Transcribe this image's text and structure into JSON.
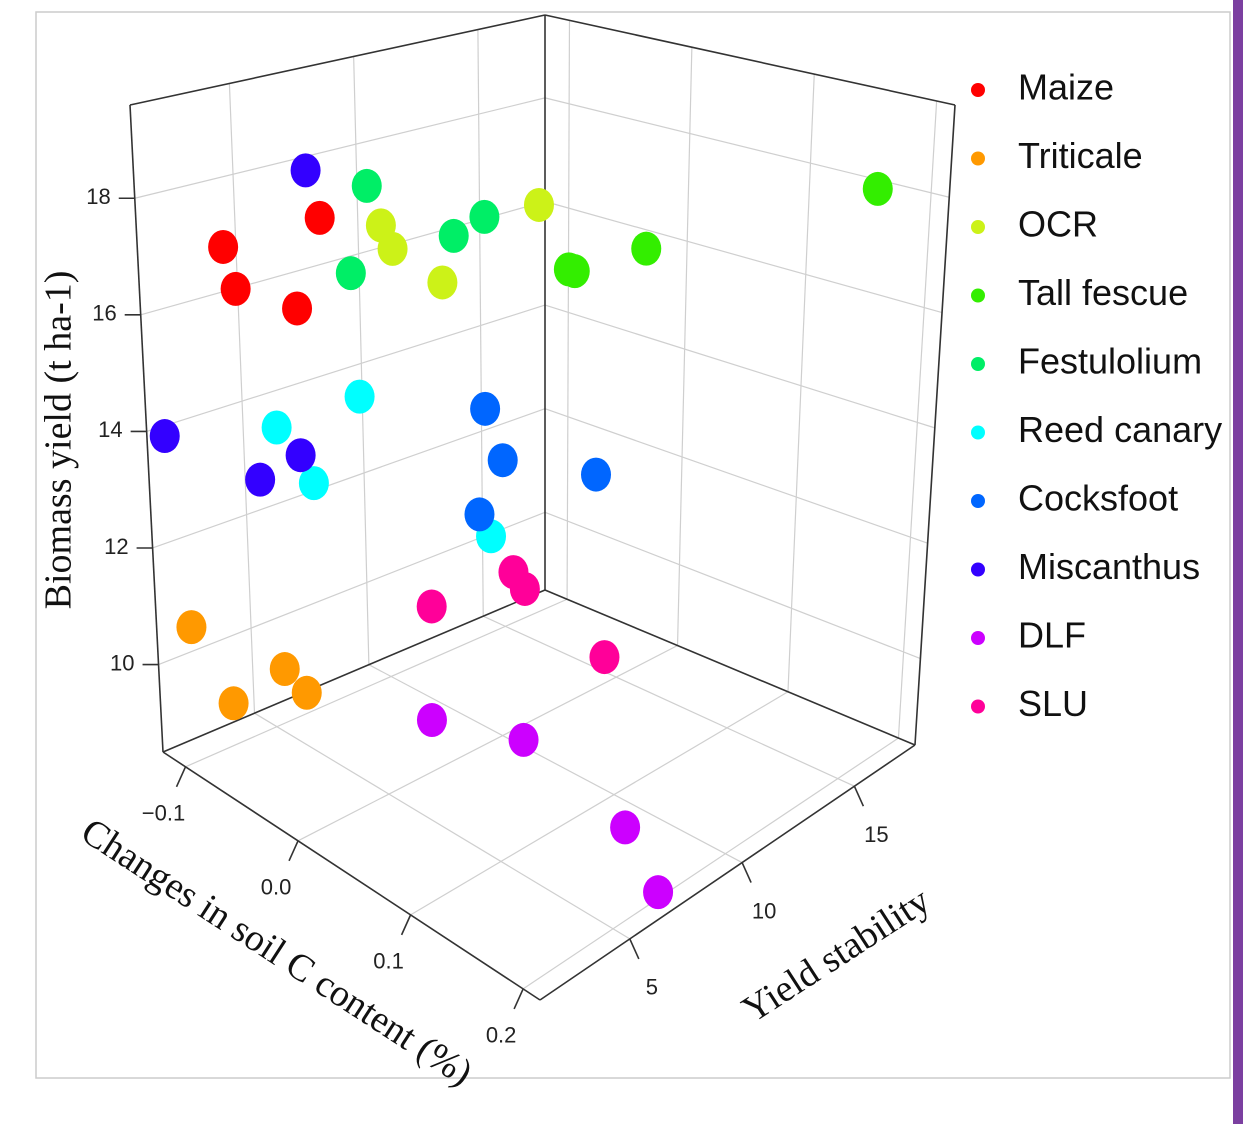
{
  "chart_data": {
    "type": "scatter3d",
    "xlabel": "Changes in soil C content (%)",
    "ylabel": "Yield stability",
    "zlabel": "Biomass yield (t ha-1)",
    "xlim": [
      -0.12,
      0.215
    ],
    "ylim": [
      1,
      17.7
    ],
    "zlim": [
      8.5,
      19.6
    ],
    "xticks": [
      {
        "value": -0.1,
        "label": "−0.1"
      },
      {
        "value": 0,
        "label": "0.0"
      },
      0.1,
      0.2
    ],
    "yticks": [
      5,
      10,
      15
    ],
    "zticks": [
      10,
      12,
      14,
      16,
      18
    ],
    "grid": true,
    "legend": "right",
    "series": [
      {
        "name": "Maize",
        "color": "#ff0000",
        "x": [
          -0.11,
          -0.08,
          -0.07,
          -0.09
        ],
        "y": [
          4,
          3,
          5,
          7
        ],
        "z": [
          16.9,
          16.5,
          16.0,
          17.2
        ]
      },
      {
        "name": "Triticale",
        "color": "#ff9900",
        "x": [
          -0.11,
          -0.075,
          -0.07,
          -0.03
        ],
        "y": [
          2,
          2,
          4,
          3
        ],
        "z": [
          10.6,
          9.7,
          10.0,
          10.2
        ]
      },
      {
        "name": "OCR",
        "color": "#ccf218",
        "x": [
          -0.07,
          -0.08,
          -0.05,
          -0.07
        ],
        "y": [
          15,
          9,
          8,
          11
        ],
        "z": [
          16.6,
          16.9,
          16.8,
          15.7
        ]
      },
      {
        "name": "Tall fescue",
        "color": "#33ee00",
        "x": [
          -0.065,
          -0.06,
          0.0,
          0.17
        ],
        "y": [
          16,
          16,
          16,
          17
        ],
        "z": [
          15.3,
          15.3,
          16.1,
          18.0
        ]
      },
      {
        "name": "Festulolium",
        "color": "#00ee66",
        "x": [
          -0.05,
          -0.075,
          -0.06,
          -0.065
        ],
        "y": [
          7,
          13,
          11,
          7
        ],
        "z": [
          18.0,
          16.6,
          16.6,
          16.4
        ]
      },
      {
        "name": "Reed canary",
        "color": "#00ffff",
        "x": [
          -0.06,
          -0.07,
          -0.06,
          -0.03
        ],
        "y": [
          7,
          4,
          5,
          11
        ],
        "z": [
          14.3,
          14.1,
          13.1,
          11.5
        ]
      },
      {
        "name": "Cocksfoot",
        "color": "#0066ff",
        "x": [
          -0.055,
          -0.04,
          -0.02,
          -0.04
        ],
        "y": [
          12,
          12,
          15,
          11
        ],
        "z": [
          13.4,
          12.6,
          12.0,
          11.8
        ]
      },
      {
        "name": "Miscanthus",
        "color": "#3300ff",
        "x": [
          -0.08,
          -0.115,
          -0.065,
          -0.05
        ],
        "y": [
          6,
          1.5,
          3,
          4
        ],
        "z": [
          18.2,
          13.9,
          13.4,
          13.8
        ]
      },
      {
        "name": "DLF",
        "color": "#cc00ff",
        "x": [
          0.06,
          0.1,
          0.17,
          0.2
        ],
        "y": [
          4,
          6,
          7,
          7
        ],
        "z": [
          10.5,
          10.2,
          9.3,
          8.6
        ]
      },
      {
        "name": "SLU",
        "color": "#ff0099",
        "x": [
          0.02,
          0.01,
          0.02,
          0.07
        ],
        "y": [
          6,
          10,
          10,
          11
        ],
        "z": [
          11.6,
          11.4,
          11.2,
          10.3
        ]
      }
    ]
  }
}
